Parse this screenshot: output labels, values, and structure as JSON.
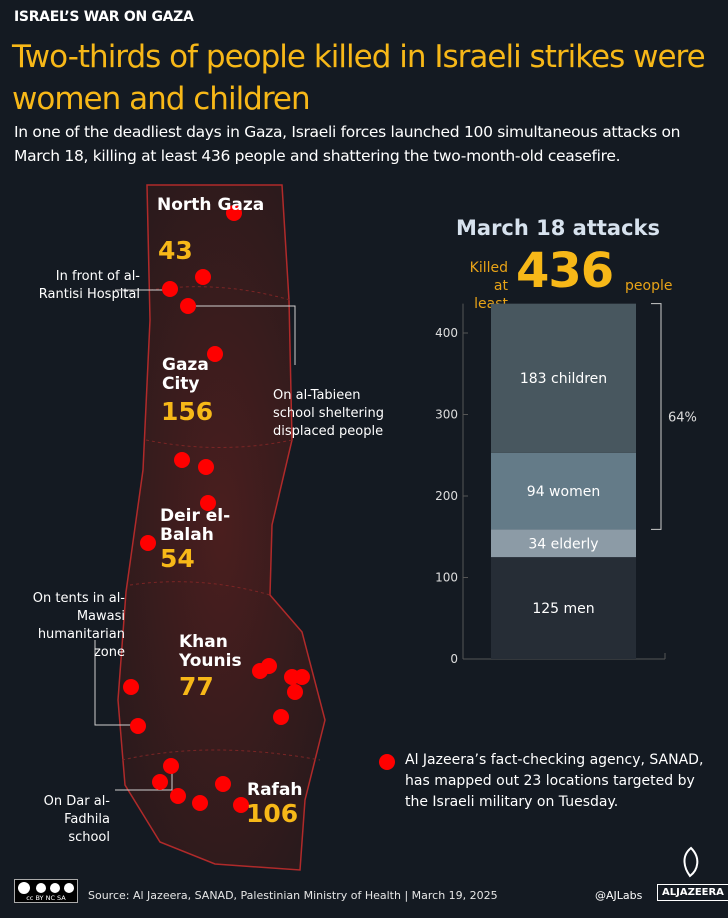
{
  "kicker": "ISRAEL’S WAR ON GAZA",
  "title": "Two-thirds of people killed in Israeli strikes were women and children",
  "subtitle": "In one of the deadliest days in Gaza, Israeli forces launched 100 simultaneous attacks on March 18, killing at least 436 people and shattering the two-month-old ceasefire.",
  "map": {
    "regions": [
      {
        "name": "North Gaza",
        "count": "43"
      },
      {
        "name": "Gaza City",
        "count": "156"
      },
      {
        "name": "Deir el-Balah",
        "count": "54"
      },
      {
        "name": "Khan Younis",
        "count": "77"
      },
      {
        "name": "Rafah",
        "count": "106"
      }
    ],
    "annotations": [
      "In front of al-Rantisi Hospital",
      "On al-Tabieen school sheltering displaced people",
      "On tents in al-Mawasi humanitarian zone",
      "On Dar al-Fadhila school"
    ],
    "legend": "Al Jazeera’s fact-checking agency, SANAD, has mapped out 23 locations targeted by the Israeli military on Tuesday.",
    "dot_color": "#ff0000"
  },
  "chart_data": {
    "type": "bar",
    "stacked": true,
    "title": "March 18 attacks",
    "headline": {
      "prefix": "Killed at least",
      "value": "436",
      "suffix": "people"
    },
    "categories": [
      "March 18"
    ],
    "series": [
      {
        "name": "men",
        "value": 125,
        "label": "125 men",
        "color": "#262d36"
      },
      {
        "name": "elderly",
        "value": 34,
        "label": "34 elderly",
        "color": "#8c9ba6"
      },
      {
        "name": "women",
        "value": 94,
        "label": "94 women",
        "color": "#647b88"
      },
      {
        "name": "children",
        "value": 183,
        "label": "183 children",
        "color": "#48575f"
      }
    ],
    "ylim": [
      0,
      436
    ],
    "yticks": [
      "0",
      "100",
      "200",
      "300",
      "400"
    ],
    "bracket_label": "64%"
  },
  "footer": {
    "source": "Source:  Al Jazeera, SANAD, Palestinian Ministry of Health   |   March 19, 2025",
    "handle": "@AJLabs",
    "logo": "ALJAZEERA",
    "license": "cc BY NC SA"
  }
}
